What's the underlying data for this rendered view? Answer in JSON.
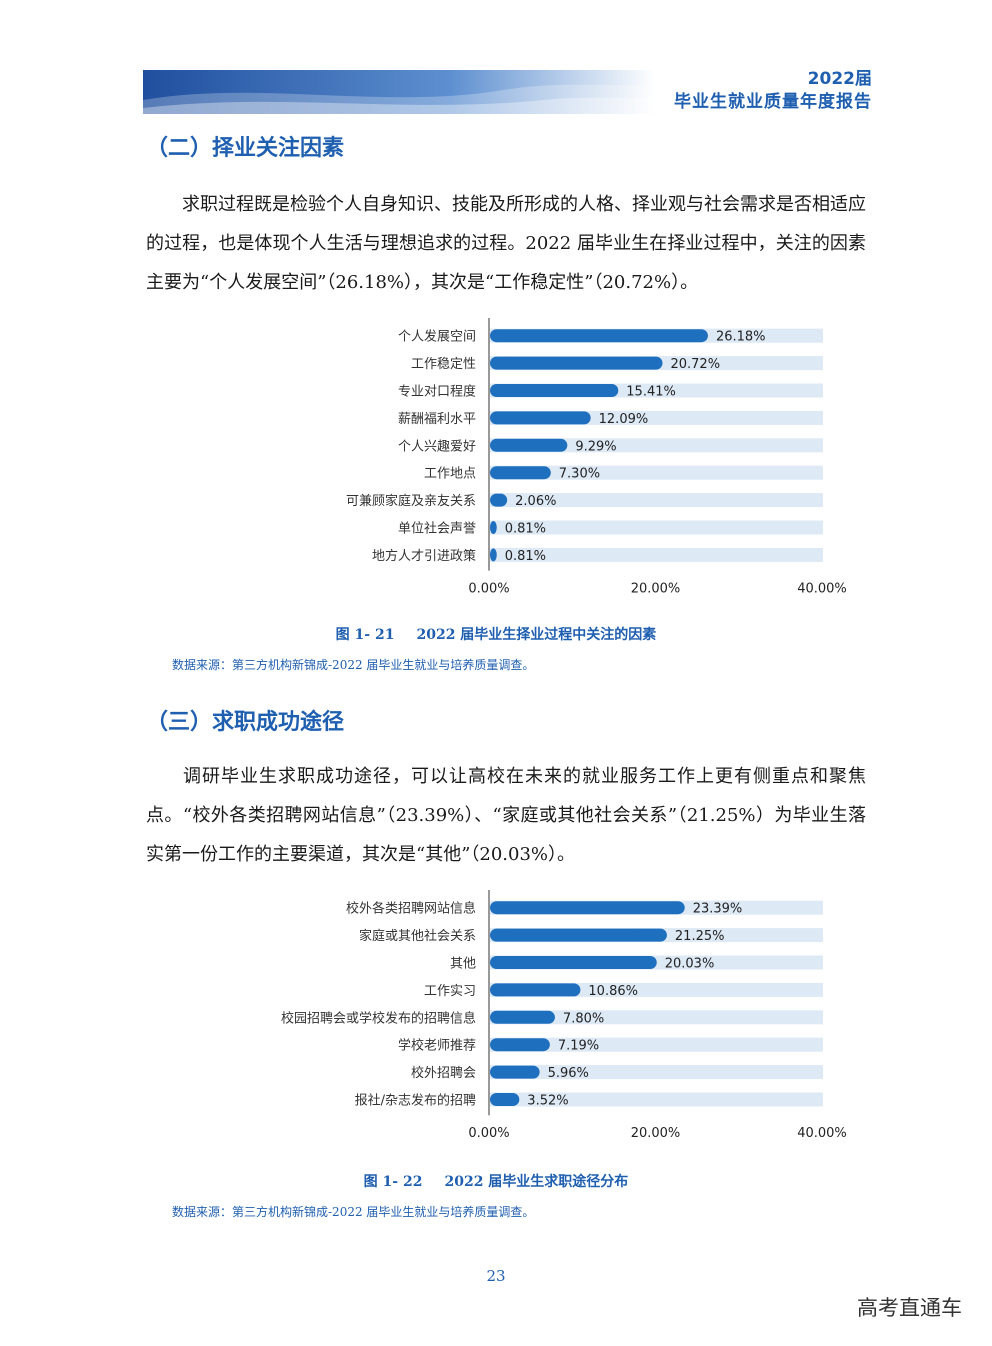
{
  "header": {
    "year": "2022届",
    "title": "毕业生就业质量年度报告"
  },
  "section2": {
    "title": "（二）择业关注因素",
    "paragraph": "求职过程既是检验个人自身知识、技能及所形成的人格、择业观与社会需求是否相适应的过程，也是体现个人生活与理想追求的过程。2022 届毕业生在择业过程中，关注的因素主要为“个人发展空间”（26.18%），其次是“工作稳定性”（20.72%）。"
  },
  "section3": {
    "title": "（三）求职成功途径",
    "paragraph": "调研毕业生求职成功途径，可以让高校在未来的就业服务工作上更有侧重点和聚焦点。“校外各类招聘网站信息”（23.39%）、“家庭或其他社会关系”（21.25%）为毕业生落实第一份工作的主要渠道，其次是“其他”（20.03%）。"
  },
  "chart_data": [
    {
      "type": "bar",
      "orientation": "horizontal",
      "categories": [
        "个人发展空间",
        "工作稳定性",
        "专业对口程度",
        "薪酬福利水平",
        "个人兴趣爱好",
        "工作地点",
        "可兼顾家庭及亲友关系",
        "单位社会声誉",
        "地方人才引进政策"
      ],
      "values": [
        26.18,
        20.72,
        15.41,
        12.09,
        9.29,
        7.3,
        2.06,
        0.81,
        0.81
      ],
      "value_labels": [
        "26.18%",
        "20.72%",
        "15.41%",
        "12.09%",
        "9.29%",
        "7.30%",
        "2.06%",
        "0.81%",
        "0.81%"
      ],
      "xlim": [
        0,
        40
      ],
      "xticks": [
        "0.00%",
        "20.00%",
        "40.00%"
      ],
      "bar_color": "#1f6fbf",
      "track_color": "#dde9f5",
      "caption_number": "图 1- 21",
      "caption_text": "2022 届毕业生择业过程中关注的因素",
      "source": "数据来源：第三方机构新锦成-2022 届毕业生就业与培养质量调查。"
    },
    {
      "type": "bar",
      "orientation": "horizontal",
      "categories": [
        "校外各类招聘网站信息",
        "家庭或其他社会关系",
        "其他",
        "工作实习",
        "校园招聘会或学校发布的招聘信息",
        "学校老师推荐",
        "校外招聘会",
        "报社/杂志发布的招聘"
      ],
      "values": [
        23.39,
        21.25,
        20.03,
        10.86,
        7.8,
        7.19,
        5.96,
        3.52
      ],
      "value_labels": [
        "23.39%",
        "21.25%",
        "20.03%",
        "10.86%",
        "7.80%",
        "7.19%",
        "5.96%",
        "3.52%"
      ],
      "xlim": [
        0,
        40
      ],
      "xticks": [
        "0.00%",
        "20.00%",
        "40.00%"
      ],
      "bar_color": "#1f6fbf",
      "track_color": "#dde9f5",
      "caption_number": "图 1- 22",
      "caption_text": "2022 届毕业生求职途径分布",
      "source": "数据来源：第三方机构新锦成-2022 届毕业生就业与培养质量调查。"
    }
  ],
  "page_number": "23",
  "watermark": "高考直通车"
}
